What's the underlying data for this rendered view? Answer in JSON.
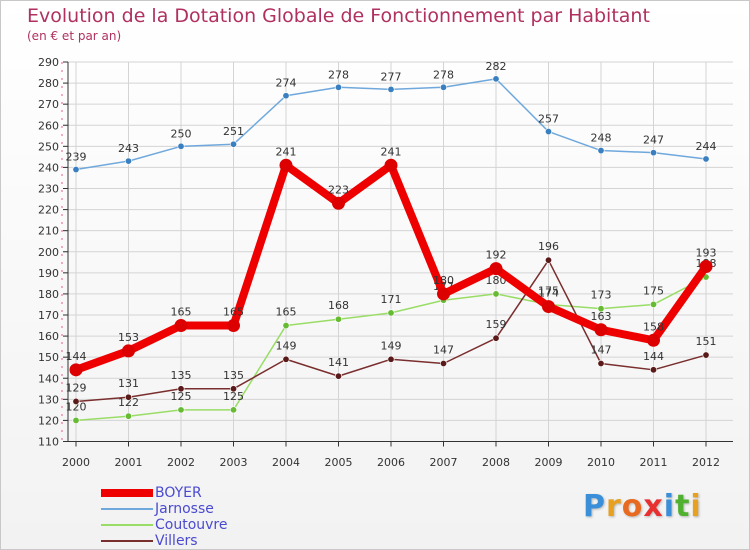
{
  "title": "Evolution de la Dotation Globale de Fonctionnement par Habitant",
  "subtitle": "(en € et par an)",
  "logo": {
    "text": "Proxiti",
    "letters": [
      {
        "ch": "P",
        "color": "#3a8fd8"
      },
      {
        "ch": "r",
        "color": "#e8a020"
      },
      {
        "ch": "o",
        "color": "#e86a20"
      },
      {
        "ch": "x",
        "color": "#e83030"
      },
      {
        "ch": "i",
        "color": "#3a8fd8"
      },
      {
        "ch": "t",
        "color": "#50b030"
      },
      {
        "ch": "i",
        "color": "#e8a020"
      }
    ]
  },
  "legend": [
    {
      "label": "BOYER",
      "color": "#ee0000",
      "weight": "thick"
    },
    {
      "label": "Jarnosse",
      "color": "#6fa8dc",
      "weight": "thin"
    },
    {
      "label": "Coutouvre",
      "color": "#99dd66",
      "weight": "thin"
    },
    {
      "label": "Villers",
      "color": "#7a2e2e",
      "weight": "thin"
    }
  ],
  "chart_data": {
    "type": "line",
    "title": "Evolution de la Dotation Globale de Fonctionnement par Habitant",
    "subtitle": "(en € et par an)",
    "xlabel": "",
    "ylabel": "",
    "categories": [
      "2000",
      "2001",
      "2002",
      "2003",
      "2004",
      "2005",
      "2006",
      "2007",
      "2008",
      "2009",
      "2010",
      "2011",
      "2012"
    ],
    "ylim": [
      110,
      290
    ],
    "yticks": [
      110,
      120,
      130,
      140,
      150,
      160,
      170,
      180,
      190,
      200,
      210,
      220,
      230,
      240,
      250,
      260,
      270,
      280,
      290
    ],
    "grid": true,
    "series": [
      {
        "name": "Jarnosse",
        "color": "#6fa8dc",
        "marker": "#3a7fc0",
        "values": [
          239,
          243,
          250,
          251,
          274,
          278,
          277,
          278,
          282,
          257,
          248,
          247,
          244
        ]
      },
      {
        "name": "Coutouvre",
        "color": "#99dd66",
        "marker": "#66bb33",
        "values": [
          120,
          122,
          125,
          125,
          165,
          168,
          171,
          177,
          180,
          175,
          173,
          175,
          188
        ]
      },
      {
        "name": "Villers",
        "color": "#7a2e2e",
        "marker": "#5a1a1a",
        "values": [
          129,
          131,
          135,
          135,
          149,
          141,
          149,
          147,
          159,
          196,
          147,
          144,
          151
        ]
      },
      {
        "name": "BOYER",
        "color": "#ee0000",
        "marker": "#dd0000",
        "values": [
          144,
          153,
          165,
          165,
          241,
          223,
          241,
          180,
          192,
          174,
          163,
          158,
          193
        ]
      }
    ]
  }
}
